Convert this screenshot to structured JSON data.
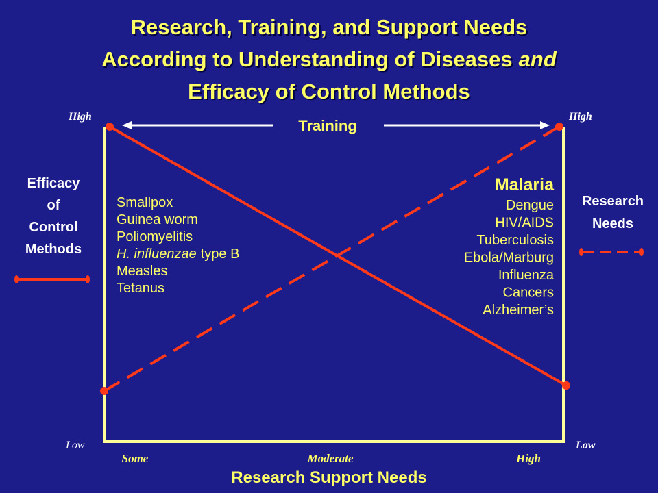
{
  "title": {
    "line1": "Research, Training, and Support Needs",
    "line2": "According to Understanding of Diseases",
    "line2_em": "and",
    "line3": "Efficacy of Control Methods"
  },
  "left_axis": {
    "top": "High",
    "bottom": "Low",
    "label": [
      "Efficacy",
      "of",
      "Control",
      "Methods"
    ]
  },
  "right_axis": {
    "top": "High",
    "bottom": "Low",
    "label": [
      "Research",
      "Needs"
    ]
  },
  "top_label": "Training",
  "x_axis": {
    "ticks": [
      "Some",
      "Moderate",
      "High"
    ],
    "title": "Research Support Needs"
  },
  "left_list": [
    "Smallpox",
    "Guinea worm",
    "Poliomyelitis",
    {
      "italic": "H. influenzae",
      "text": "type B"
    },
    "Measles",
    "Tetanus"
  ],
  "right_list": {
    "header": "Malaria",
    "items": [
      "Dengue",
      "HIV/AIDS",
      "Tuberculosis",
      "Ebola/Marburg",
      "Influenza",
      "Cancers",
      "Alzheimer’s"
    ]
  }
}
